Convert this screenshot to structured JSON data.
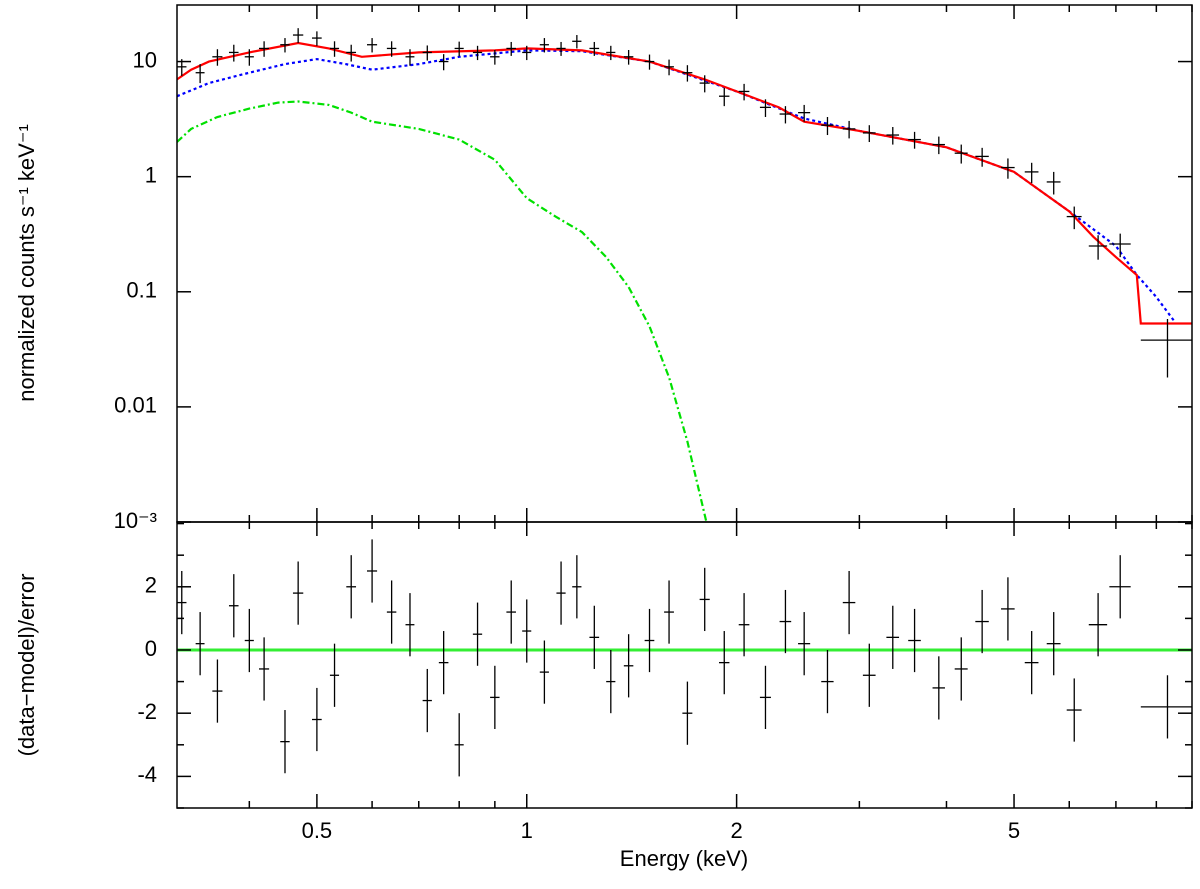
{
  "chart_data": [
    {
      "type": "spectrum",
      "ylabel": "normalized counts s⁻¹ keV⁻¹",
      "log_x": true,
      "log_y": true,
      "xlim": [
        0.315,
        9
      ],
      "ylim": [
        0.001,
        31
      ],
      "xticks": [
        0.5,
        1,
        2,
        5
      ],
      "xminorticks": [
        0.4,
        0.6,
        0.7,
        0.8,
        0.9,
        3,
        4,
        6,
        7,
        8,
        9
      ],
      "yticks": [
        {
          "value": 0.001,
          "label": "10⁻³"
        },
        0.01,
        0.1,
        1,
        10
      ],
      "points": {
        "color": "#000000",
        "x": [
          0.32,
          0.34,
          0.36,
          0.38,
          0.4,
          0.42,
          0.45,
          0.47,
          0.5,
          0.53,
          0.56,
          0.6,
          0.64,
          0.68,
          0.72,
          0.76,
          0.8,
          0.85,
          0.9,
          0.95,
          1.0,
          1.06,
          1.12,
          1.18,
          1.25,
          1.32,
          1.4,
          1.5,
          1.6,
          1.7,
          1.8,
          1.92,
          2.05,
          2.2,
          2.35,
          2.5,
          2.7,
          2.9,
          3.1,
          3.35,
          3.6,
          3.9,
          4.2,
          4.5,
          4.9,
          5.3,
          5.7,
          6.1,
          6.6,
          7.1,
          8.3
        ],
        "values": [
          9,
          8,
          11,
          12,
          11,
          13,
          14,
          17,
          16,
          13,
          12,
          14,
          13,
          11,
          12,
          10,
          13,
          12,
          11,
          13,
          12,
          14,
          13,
          15,
          13,
          12,
          11,
          10,
          9,
          8,
          6.5,
          5,
          5.5,
          4,
          3.5,
          3.6,
          2.8,
          2.6,
          2.4,
          2.3,
          2.1,
          1.9,
          1.6,
          1.5,
          1.2,
          1.1,
          0.9,
          0.45,
          0.25,
          0.26,
          0.038
        ],
        "xerr": [
          0.005,
          0.005,
          0.006,
          0.006,
          0.006,
          0.007,
          0.007,
          0.008,
          0.008,
          0.008,
          0.009,
          0.01,
          0.01,
          0.01,
          0.011,
          0.012,
          0.012,
          0.013,
          0.014,
          0.015,
          0.015,
          0.016,
          0.017,
          0.018,
          0.02,
          0.02,
          0.022,
          0.024,
          0.026,
          0.028,
          0.03,
          0.033,
          0.036,
          0.04,
          0.045,
          0.05,
          0.055,
          0.06,
          0.065,
          0.07,
          0.075,
          0.08,
          0.09,
          0.1,
          0.11,
          0.12,
          0.13,
          0.15,
          0.2,
          0.25,
          0.7
        ],
        "yerr": [
          1.5,
          1.5,
          1.8,
          2,
          1.8,
          2,
          2,
          2.5,
          2.3,
          2,
          2,
          2,
          2,
          1.8,
          1.8,
          1.6,
          1.9,
          1.7,
          1.6,
          1.8,
          1.7,
          2,
          1.8,
          2,
          1.8,
          1.7,
          1.6,
          1.5,
          1.4,
          1.3,
          1.1,
          0.9,
          0.9,
          0.7,
          0.6,
          0.6,
          0.5,
          0.45,
          0.4,
          0.4,
          0.35,
          0.33,
          0.3,
          0.28,
          0.24,
          0.22,
          0.2,
          0.1,
          0.06,
          0.06,
          0.02
        ]
      },
      "series": [
        {
          "color": "#00e000",
          "dash": "7,3,2,3",
          "x": [
            0.315,
            0.33,
            0.36,
            0.4,
            0.44,
            0.47,
            0.52,
            0.56,
            0.6,
            0.7,
            0.8,
            0.9,
            1.0,
            1.1,
            1.2,
            1.3,
            1.4,
            1.5,
            1.6,
            1.7,
            1.81
          ],
          "values": [
            2,
            2.6,
            3.3,
            3.9,
            4.4,
            4.5,
            4.2,
            3.6,
            3.0,
            2.6,
            2.1,
            1.4,
            0.65,
            0.45,
            0.33,
            0.2,
            0.11,
            0.05,
            0.018,
            0.005,
            0.001
          ]
        },
        {
          "color": "#0000ff",
          "dash": "3,3",
          "x": [
            0.315,
            0.35,
            0.4,
            0.45,
            0.5,
            0.55,
            0.6,
            0.7,
            0.8,
            1.0,
            1.2,
            1.5,
            2,
            2.5,
            3,
            4,
            5,
            6,
            7,
            7.5,
            8,
            8.5
          ],
          "values": [
            5,
            6.5,
            8,
            9.5,
            10.5,
            9.5,
            8.5,
            9.5,
            11,
            12.5,
            12.3,
            10,
            5.5,
            3.2,
            2.5,
            1.8,
            1.1,
            0.5,
            0.25,
            0.14,
            0.09,
            0.055
          ]
        },
        {
          "color": "#ff0000",
          "dash": "none",
          "x": [
            0.315,
            0.33,
            0.35,
            0.4,
            0.47,
            0.52,
            0.58,
            0.7,
            0.9,
            1.0,
            1.2,
            1.5,
            1.8,
            2.0,
            2.3,
            2.5,
            3,
            4,
            5,
            6,
            6.5,
            7,
            7.5,
            7.6,
            9
          ],
          "values": [
            7,
            8.5,
            10,
            12,
            14.5,
            13,
            11,
            12,
            12.5,
            13,
            12.5,
            10,
            7,
            5.5,
            4,
            3,
            2.5,
            1.8,
            1.1,
            0.5,
            0.3,
            0.2,
            0.14,
            0.053,
            0.053
          ]
        }
      ]
    },
    {
      "type": "residuals",
      "xlabel": "Energy (keV)",
      "ylabel": "(data−model)/error",
      "log_x": true,
      "xlim": [
        0.315,
        9
      ],
      "ylim": [
        -5,
        4.05
      ],
      "xticks": [
        0.5,
        1,
        2,
        5
      ],
      "xminorticks": [
        0.4,
        0.6,
        0.7,
        0.8,
        0.9,
        3,
        4,
        6,
        7,
        8,
        9
      ],
      "yticks": [
        -4,
        -2,
        0,
        2
      ],
      "yminorticks": [
        -5,
        -3,
        -1,
        1,
        3,
        4
      ],
      "reference_line": {
        "value": 0,
        "color": "#33ee33"
      },
      "points": {
        "color": "#000000",
        "x": [
          0.32,
          0.34,
          0.36,
          0.38,
          0.4,
          0.42,
          0.45,
          0.47,
          0.5,
          0.53,
          0.56,
          0.6,
          0.64,
          0.68,
          0.72,
          0.76,
          0.8,
          0.85,
          0.9,
          0.95,
          1.0,
          1.06,
          1.12,
          1.18,
          1.25,
          1.32,
          1.4,
          1.5,
          1.6,
          1.7,
          1.8,
          1.92,
          2.05,
          2.2,
          2.35,
          2.5,
          2.7,
          2.9,
          3.1,
          3.35,
          3.6,
          3.9,
          4.2,
          4.5,
          4.9,
          5.3,
          5.7,
          6.1,
          6.6,
          7.1,
          8.3
        ],
        "values": [
          1.5,
          0.2,
          -1.3,
          1.4,
          0.3,
          -0.6,
          -2.9,
          1.8,
          -2.2,
          -0.8,
          2,
          2.5,
          1.2,
          0.8,
          -1.6,
          -0.4,
          -3,
          0.5,
          -1.5,
          1.2,
          0.6,
          -0.7,
          1.8,
          2,
          0.4,
          -1,
          -0.5,
          0.3,
          1.2,
          -2,
          1.6,
          -0.4,
          0.8,
          -1.5,
          0.9,
          0.2,
          -1,
          1.5,
          -0.8,
          0.4,
          0.3,
          -1.2,
          -0.6,
          0.9,
          1.3,
          -0.4,
          0.2,
          -1.9,
          0.8,
          2,
          -1.8
        ],
        "xerr": [
          0.005,
          0.005,
          0.006,
          0.006,
          0.006,
          0.007,
          0.007,
          0.008,
          0.008,
          0.008,
          0.009,
          0.01,
          0.01,
          0.01,
          0.011,
          0.012,
          0.012,
          0.013,
          0.014,
          0.015,
          0.015,
          0.016,
          0.017,
          0.018,
          0.02,
          0.02,
          0.022,
          0.024,
          0.026,
          0.028,
          0.03,
          0.033,
          0.036,
          0.04,
          0.045,
          0.05,
          0.055,
          0.06,
          0.065,
          0.07,
          0.075,
          0.08,
          0.09,
          0.1,
          0.11,
          0.12,
          0.13,
          0.15,
          0.2,
          0.25,
          0.7
        ],
        "yerr": [
          1,
          1,
          1,
          1,
          1,
          1,
          1,
          1,
          1,
          1,
          1,
          1,
          1,
          1,
          1,
          1,
          1,
          1,
          1,
          1,
          1,
          1,
          1,
          1,
          1,
          1,
          1,
          1,
          1,
          1,
          1,
          1,
          1,
          1,
          1,
          1,
          1,
          1,
          1,
          1,
          1,
          1,
          1,
          1,
          1,
          1,
          1,
          1,
          1,
          1,
          1
        ]
      }
    }
  ]
}
